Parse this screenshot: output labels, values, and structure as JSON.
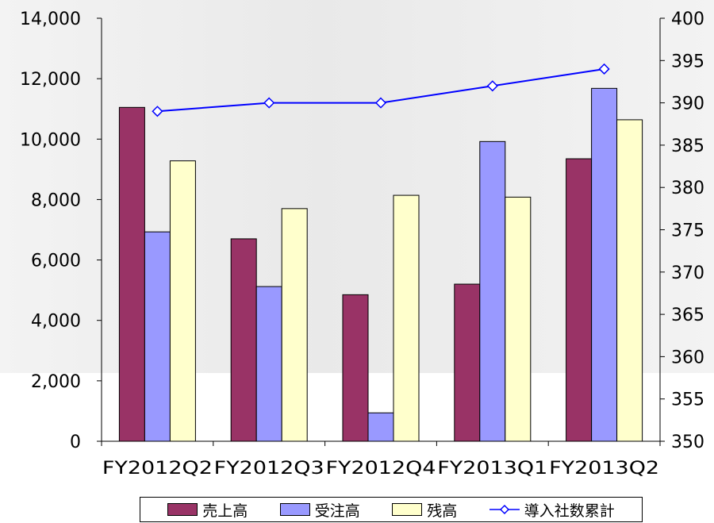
{
  "chart_data": {
    "type": "bar",
    "categories": [
      "FY2012Q2",
      "FY2012Q3",
      "FY2012Q4",
      "FY2013Q1",
      "FY2013Q2"
    ],
    "series": [
      {
        "name": "売上高",
        "type": "bar",
        "axis": "left",
        "color": "#993366",
        "values": [
          11050,
          6700,
          4850,
          5200,
          9350
        ]
      },
      {
        "name": "受注高",
        "type": "bar",
        "axis": "left",
        "color": "#9999ff",
        "values": [
          6930,
          5120,
          940,
          9920,
          11680
        ]
      },
      {
        "name": "残高",
        "type": "bar",
        "axis": "left",
        "color": "#ffffcc",
        "values": [
          9280,
          7700,
          8140,
          8080,
          10640
        ]
      },
      {
        "name": "導入社数累計",
        "type": "line",
        "axis": "right",
        "color": "#0000ff",
        "values": [
          389,
          390,
          390,
          392,
          394
        ]
      }
    ],
    "y_left": {
      "min": 0,
      "max": 14000,
      "step": 2000,
      "tick_labels": [
        "0",
        "2,000",
        "4,000",
        "6,000",
        "8,000",
        "10,000",
        "12,000",
        "14,000"
      ]
    },
    "y_right": {
      "min": 350,
      "max": 400,
      "step": 5,
      "tick_labels": [
        "350",
        "355",
        "360",
        "365",
        "370",
        "375",
        "380",
        "385",
        "390",
        "395",
        "400"
      ]
    },
    "grid": false,
    "legend_position": "bottom"
  }
}
